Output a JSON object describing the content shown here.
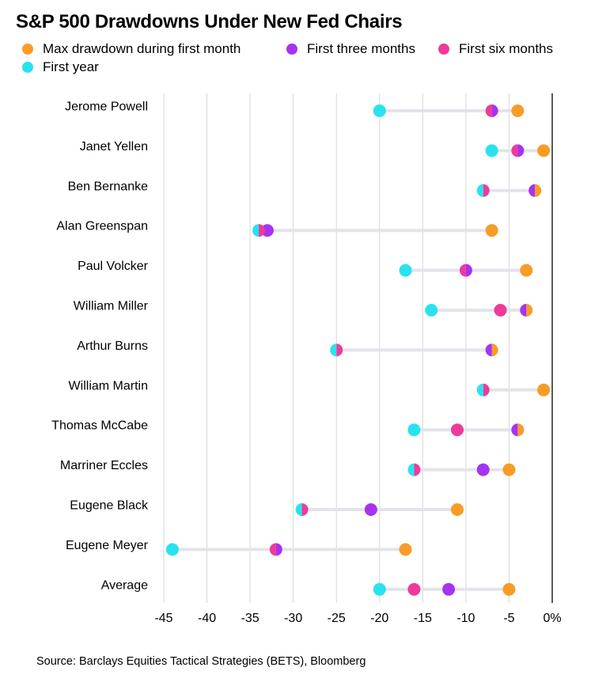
{
  "chart_data": {
    "type": "dot-range",
    "title": "S&P 500 Drawdowns Under New Fed Chairs",
    "source": "Source: Barclays Equities Tactical Strategies (BETS), Bloomberg",
    "xlim": [
      -45,
      0
    ],
    "x_ticks": [
      -45,
      -40,
      -35,
      -30,
      -25,
      -20,
      -15,
      -10,
      -5,
      0
    ],
    "x_tick_labels": [
      "-45",
      "-40",
      "-35",
      "-30",
      "-25",
      "-20",
      "-15",
      "-10",
      "-5",
      "0%"
    ],
    "grid": true,
    "legend_position": "top",
    "categories": [
      "Jerome Powell",
      "Janet Yellen",
      "Ben Bernanke",
      "Alan Greenspan",
      "Paul Volcker",
      "William Miller",
      "Arthur Burns",
      "William Martin",
      "Thomas McCabe",
      "Marriner Eccles",
      "Eugene Black",
      "Eugene Meyer",
      "Average"
    ],
    "series": [
      {
        "name": "Max drawdown during first month",
        "color": "#f89c27",
        "values": [
          -4,
          -1,
          -2,
          -7,
          -3,
          -3,
          -7,
          -1,
          -4,
          -5,
          -11,
          -17,
          -5
        ]
      },
      {
        "name": "First three months",
        "color": "#a633f0",
        "values": [
          -7,
          -4,
          -2,
          -33,
          -10,
          -3,
          -7,
          -8,
          -4,
          -8,
          -21,
          -32,
          -12
        ]
      },
      {
        "name": "First six months",
        "color": "#ee3b9b",
        "values": [
          -7,
          -4,
          -8,
          -34,
          -10,
          -6,
          -25,
          -8,
          -11,
          -16,
          -29,
          -32,
          -16
        ]
      },
      {
        "name": "First year",
        "color": "#28e3ef",
        "values": [
          -20,
          -7,
          -8,
          -34,
          -17,
          -14,
          -25,
          -8,
          -16,
          -16,
          -29,
          -44,
          -20
        ]
      }
    ]
  }
}
